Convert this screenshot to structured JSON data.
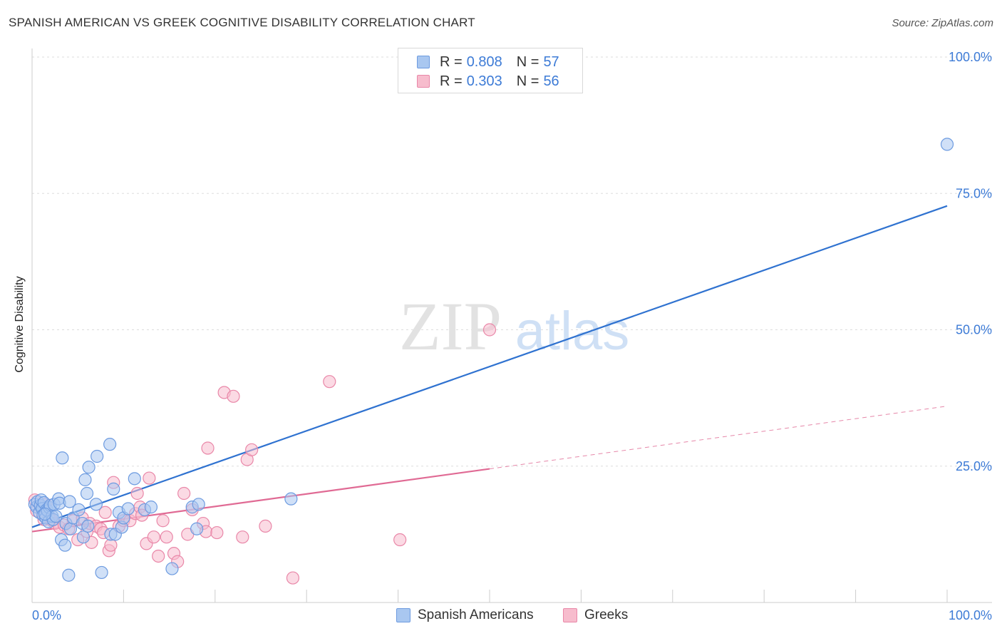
{
  "title": "SPANISH AMERICAN VS GREEK COGNITIVE DISABILITY CORRELATION CHART",
  "source": "Source: ZipAtlas.com",
  "watermark": {
    "zip": "ZIP",
    "atlas": "atlas"
  },
  "legend": {
    "series1": {
      "r_label": "R =",
      "r_value": "0.808",
      "n_label": "N =",
      "n_value": "57"
    },
    "series2": {
      "r_label": "R =",
      "r_value": "0.303",
      "n_label": "N =",
      "n_value": "56"
    }
  },
  "colors": {
    "blue_fill": "#a9c7f0",
    "blue_stroke": "#6d9be0",
    "blue_line": "#2f72d0",
    "pink_fill": "#f7bccd",
    "pink_stroke": "#e987a8",
    "pink_line": "#e06a94",
    "accent_text": "#3d7bd6"
  },
  "chart_data": {
    "type": "scatter",
    "title": "SPANISH AMERICAN VS GREEK COGNITIVE DISABILITY CORRELATION CHART",
    "xlabel": "",
    "ylabel": "Cognitive Disability",
    "xlim": [
      0,
      100
    ],
    "ylim": [
      0,
      100
    ],
    "x_tick_labels": [
      "0.0%",
      "100.0%"
    ],
    "y_ticks": [
      25,
      50,
      75,
      100
    ],
    "y_tick_labels": [
      "25.0%",
      "50.0%",
      "75.0%",
      "100.0%"
    ],
    "legend_position": "bottom-center",
    "series": [
      {
        "name": "Spanish Americans",
        "color": "#6d9be0",
        "trend": {
          "x0": 0,
          "y0": 13.8,
          "x1": 100,
          "y1": 72.7
        },
        "points": [
          [
            0.3,
            18.0
          ],
          [
            0.5,
            17.5
          ],
          [
            0.6,
            18.5
          ],
          [
            0.8,
            16.5
          ],
          [
            0.9,
            17.8
          ],
          [
            1.0,
            18.8
          ],
          [
            1.1,
            17.2
          ],
          [
            1.2,
            16.0
          ],
          [
            1.3,
            18.3
          ],
          [
            1.5,
            15.5
          ],
          [
            1.6,
            17.0
          ],
          [
            1.7,
            16.8
          ],
          [
            1.8,
            14.8
          ],
          [
            1.9,
            17.4
          ],
          [
            2.0,
            17.8
          ],
          [
            2.2,
            15.8
          ],
          [
            2.3,
            15.2
          ],
          [
            2.4,
            18.0
          ],
          [
            2.6,
            15.8
          ],
          [
            2.9,
            19.0
          ],
          [
            3.0,
            18.2
          ],
          [
            3.2,
            11.5
          ],
          [
            3.3,
            26.5
          ],
          [
            3.6,
            10.5
          ],
          [
            3.7,
            14.5
          ],
          [
            4.0,
            5.0
          ],
          [
            4.1,
            18.5
          ],
          [
            4.2,
            13.5
          ],
          [
            4.5,
            15.5
          ],
          [
            5.1,
            17.0
          ],
          [
            5.5,
            14.5
          ],
          [
            5.6,
            12.0
          ],
          [
            5.8,
            22.5
          ],
          [
            6.0,
            20.0
          ],
          [
            6.1,
            14.0
          ],
          [
            6.2,
            24.8
          ],
          [
            7.0,
            18.0
          ],
          [
            7.1,
            26.8
          ],
          [
            7.6,
            5.5
          ],
          [
            8.5,
            29.0
          ],
          [
            8.6,
            12.5
          ],
          [
            8.9,
            20.8
          ],
          [
            9.1,
            12.5
          ],
          [
            9.5,
            16.5
          ],
          [
            9.8,
            13.8
          ],
          [
            10.0,
            15.5
          ],
          [
            10.5,
            17.2
          ],
          [
            11.2,
            22.7
          ],
          [
            12.3,
            17.0
          ],
          [
            13.0,
            17.5
          ],
          [
            15.3,
            6.2
          ],
          [
            17.5,
            17.5
          ],
          [
            18.0,
            13.5
          ],
          [
            18.2,
            18.0
          ],
          [
            28.3,
            19.0
          ],
          [
            100.0,
            84.0
          ],
          [
            1.4,
            16.2
          ]
        ]
      },
      {
        "name": "Greeks",
        "color": "#e987a8",
        "trend": {
          "x0": 0,
          "y0": 13.0,
          "x1": 50,
          "y1": 24.5,
          "dash_x1": 100,
          "dash_y1": 36.0
        },
        "points": [
          [
            0.3,
            18.8
          ],
          [
            0.5,
            16.8
          ],
          [
            1.0,
            17.5
          ],
          [
            1.3,
            15.2
          ],
          [
            1.5,
            18.0
          ],
          [
            1.8,
            16.0
          ],
          [
            2.2,
            15.0
          ],
          [
            2.5,
            14.5
          ],
          [
            3.0,
            13.8
          ],
          [
            3.5,
            14.2
          ],
          [
            4.0,
            13.5
          ],
          [
            4.5,
            15.0
          ],
          [
            5.0,
            11.5
          ],
          [
            5.5,
            15.5
          ],
          [
            6.0,
            13.0
          ],
          [
            6.3,
            14.5
          ],
          [
            6.5,
            11.0
          ],
          [
            7.0,
            14.0
          ],
          [
            7.5,
            13.5
          ],
          [
            7.8,
            12.8
          ],
          [
            8.0,
            16.5
          ],
          [
            8.4,
            9.5
          ],
          [
            8.6,
            10.5
          ],
          [
            8.9,
            22.0
          ],
          [
            9.5,
            14.0
          ],
          [
            10.0,
            15.0
          ],
          [
            10.7,
            15.0
          ],
          [
            11.3,
            16.3
          ],
          [
            11.5,
            20.0
          ],
          [
            11.8,
            17.5
          ],
          [
            12.0,
            16.0
          ],
          [
            12.5,
            10.8
          ],
          [
            12.8,
            22.8
          ],
          [
            13.3,
            12.0
          ],
          [
            13.8,
            8.5
          ],
          [
            14.3,
            15.0
          ],
          [
            14.7,
            12.0
          ],
          [
            15.5,
            9.0
          ],
          [
            15.9,
            7.5
          ],
          [
            16.6,
            20.0
          ],
          [
            17.0,
            12.5
          ],
          [
            17.5,
            17.0
          ],
          [
            18.7,
            14.5
          ],
          [
            19.0,
            13.0
          ],
          [
            19.2,
            28.3
          ],
          [
            20.2,
            12.8
          ],
          [
            21.0,
            38.5
          ],
          [
            22.0,
            37.8
          ],
          [
            23.0,
            12.0
          ],
          [
            23.5,
            26.2
          ],
          [
            24.0,
            28.0
          ],
          [
            25.5,
            14.0
          ],
          [
            28.5,
            4.5
          ],
          [
            32.5,
            40.5
          ],
          [
            40.2,
            11.5
          ],
          [
            50.0,
            50.0
          ]
        ]
      }
    ]
  }
}
